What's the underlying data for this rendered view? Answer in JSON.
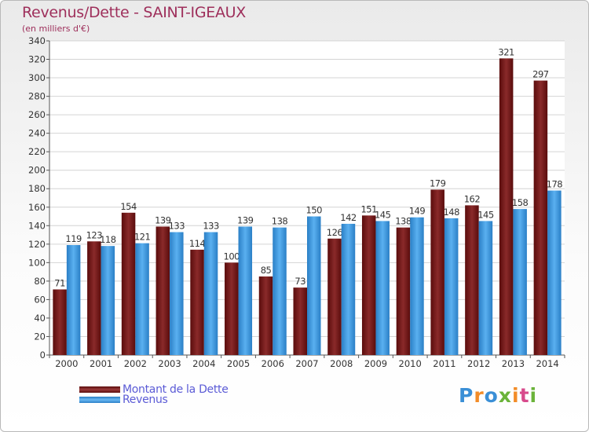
{
  "title": "Revenus/Dette - SAINT-IGEAUX",
  "subtitle": "(en milliers d'€)",
  "logo": {
    "text": "Proxiti",
    "colors": [
      "#3a8fd6",
      "#f28c28",
      "#3a8fd6",
      "#6bb33a",
      "#f28c28",
      "#d84a8c",
      "#6bb33a"
    ]
  },
  "chart_data": {
    "type": "bar",
    "title": "Revenus/Dette - SAINT-IGEAUX",
    "subtitle": "(en milliers d'€)",
    "categories": [
      "2000",
      "2001",
      "2002",
      "2003",
      "2004",
      "2005",
      "2006",
      "2007",
      "2008",
      "2009",
      "2010",
      "2011",
      "2012",
      "2013",
      "2014"
    ],
    "series": [
      {
        "name": "Montant de la Dette",
        "color": "#7a1a1a",
        "values": [
          71,
          123,
          154,
          139,
          114,
          100,
          85,
          73,
          126,
          151,
          138,
          179,
          162,
          321,
          297
        ]
      },
      {
        "name": "Revenus",
        "color": "#3f9de6",
        "values": [
          119,
          118,
          121,
          133,
          133,
          139,
          138,
          150,
          142,
          145,
          149,
          148,
          145,
          158,
          178
        ]
      }
    ],
    "ylim": [
      0,
      340
    ],
    "yticks": [
      0,
      20,
      40,
      60,
      80,
      100,
      120,
      140,
      160,
      180,
      200,
      220,
      240,
      260,
      280,
      300,
      320,
      340
    ],
    "grid": true,
    "legend": "bottom-left"
  }
}
